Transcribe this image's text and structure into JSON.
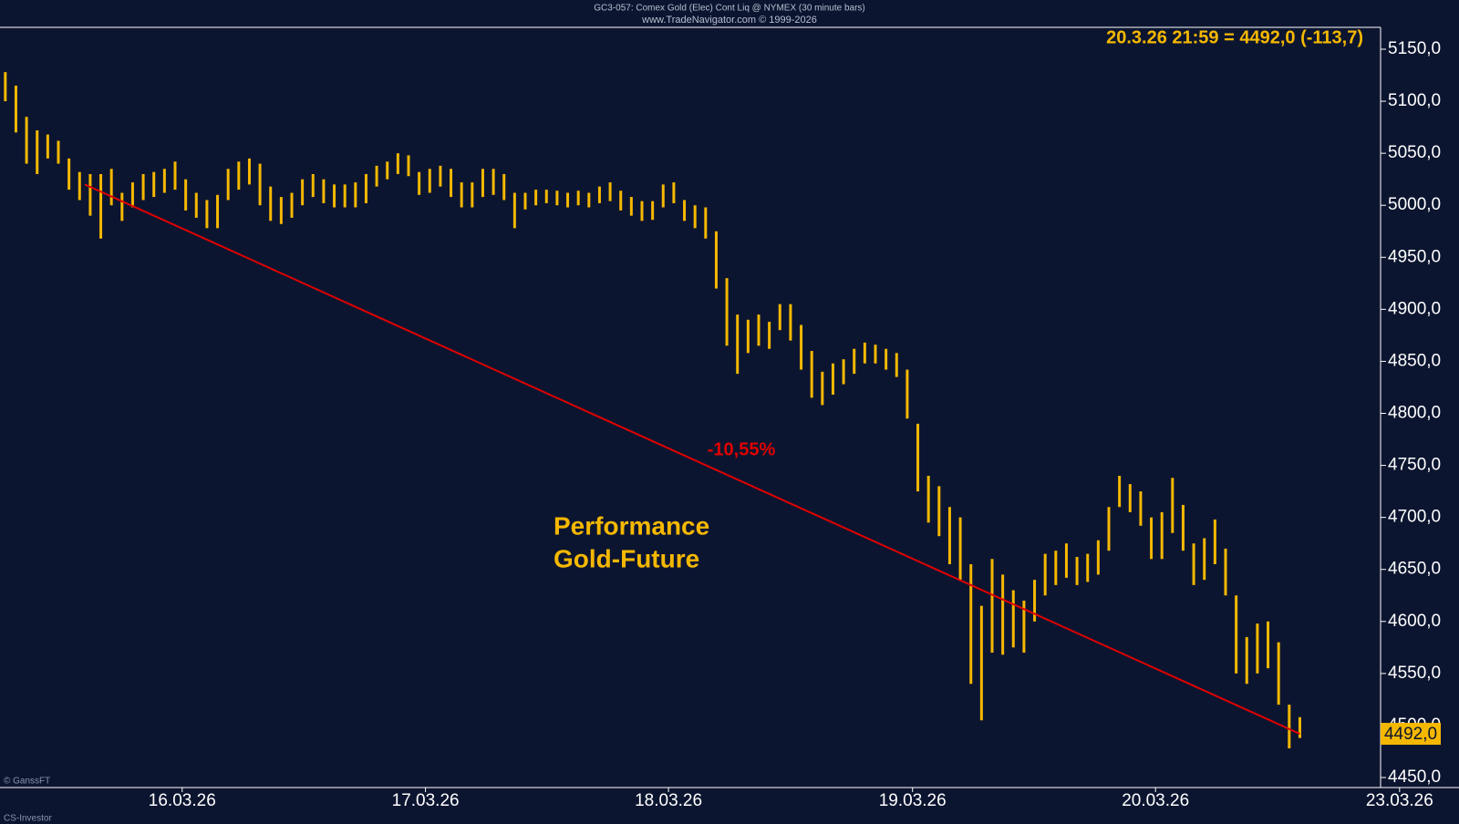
{
  "chart_data": {
    "type": "ohlc",
    "title": "GC3-057: Comex Gold (Elec) Cont Liq @ NYMEX  (30 minute bars)",
    "subtitle": "www.TradeNavigator.com © 1999-2026",
    "header": "20.3.26 21:59 = 4492,0 (-113,7)",
    "annotations": [
      "-10,55%",
      "Performance",
      "Gold-Future"
    ],
    "credits": [
      "© GanssFT",
      "CS-Investor"
    ],
    "last": {
      "value": 4492,
      "label": "4492,0"
    },
    "trendline": {
      "x": [
        7.5,
        122
      ],
      "y": [
        5020,
        4492
      ],
      "color": "#e00000"
    },
    "xlim": [
      -0.5,
      131.5
    ],
    "xticks": [
      {
        "value": 16.67,
        "label": "16.03.26"
      },
      {
        "value": 39.6,
        "label": "17.03.26"
      },
      {
        "value": 62.5,
        "label": "18.03.26"
      },
      {
        "value": 85.5,
        "label": "19.03.26"
      },
      {
        "value": 108.4,
        "label": "20.03.26"
      },
      {
        "value": 131.4,
        "label": "23.03.26"
      }
    ],
    "ylim": [
      4450,
      5150
    ],
    "yticks": [
      {
        "value": 4450,
        "label": "4450,0"
      },
      {
        "value": 4500,
        "label": "4500,0"
      },
      {
        "value": 4550,
        "label": "4550,0"
      },
      {
        "value": 4600,
        "label": "4600,0"
      },
      {
        "value": 4650,
        "label": "4650,0"
      },
      {
        "value": 4700,
        "label": "4700,0"
      },
      {
        "value": 4750,
        "label": "4750,0"
      },
      {
        "value": 4800,
        "label": "4800,0"
      },
      {
        "value": 4850,
        "label": "4850,0"
      },
      {
        "value": 4900,
        "label": "4900,0"
      },
      {
        "value": 4950,
        "label": "4950,0"
      },
      {
        "value": 5000,
        "label": "5000,0"
      },
      {
        "value": 5050,
        "label": "5050,0"
      },
      {
        "value": 5100,
        "label": "5100,0"
      },
      {
        "value": 5150,
        "label": "5150,0"
      }
    ],
    "series": [
      {
        "color": "#f5b800",
        "high": [
          5128,
          5115,
          5085,
          5072,
          5068,
          5062,
          5045,
          5032,
          5030,
          5030,
          5035,
          5012,
          5022,
          5030,
          5032,
          5035,
          5042,
          5025,
          5012,
          5005,
          5010,
          5035,
          5042,
          5045,
          5040,
          5018,
          5008,
          5012,
          5025,
          5030,
          5025,
          5020,
          5020,
          5022,
          5030,
          5038,
          5042,
          5050,
          5048,
          5032,
          5035,
          5038,
          5035,
          5022,
          5022,
          5035,
          5035,
          5030,
          5012,
          5012,
          5015,
          5015,
          5014,
          5012,
          5014,
          5012,
          5018,
          5022,
          5014,
          5008,
          5004,
          5004,
          5020,
          5022,
          5005,
          5000,
          4998,
          4975,
          4930,
          4895,
          4890,
          4895,
          4888,
          4905,
          4905,
          4885,
          4860,
          4840,
          4848,
          4852,
          4862,
          4868,
          4866,
          4862,
          4858,
          4842,
          4790,
          4740,
          4730,
          4710,
          4700,
          4655,
          4615,
          4660,
          4645,
          4630,
          4620,
          4640,
          4665,
          4668,
          4675,
          4662,
          4665,
          4678,
          4710,
          4740,
          4732,
          4725,
          4700,
          4705,
          4738,
          4712,
          4675,
          4680,
          4698,
          4670,
          4625,
          4585,
          4598,
          4600,
          4580,
          4520,
          4508
        ],
        "low": [
          5100,
          5070,
          5040,
          5030,
          5045,
          5040,
          5015,
          5005,
          4990,
          4968,
          5000,
          4985,
          4998,
          5005,
          5008,
          5012,
          5015,
          4995,
          4988,
          4978,
          4978,
          5005,
          5015,
          5020,
          5000,
          4985,
          4982,
          4988,
          5000,
          5008,
          5002,
          4998,
          4998,
          4998,
          5002,
          5018,
          5025,
          5030,
          5028,
          5010,
          5012,
          5018,
          5008,
          4998,
          4998,
          5008,
          5010,
          5005,
          4978,
          4996,
          5000,
          5002,
          5000,
          4998,
          5000,
          4998,
          5002,
          5004,
          4995,
          4990,
          4985,
          4986,
          4998,
          5002,
          4985,
          4978,
          4968,
          4920,
          4865,
          4838,
          4858,
          4865,
          4862,
          4880,
          4870,
          4842,
          4815,
          4808,
          4818,
          4828,
          4838,
          4848,
          4848,
          4842,
          4835,
          4795,
          4725,
          4695,
          4682,
          4655,
          4640,
          4540,
          4505,
          4570,
          4568,
          4575,
          4570,
          4600,
          4625,
          4635,
          4642,
          4635,
          4638,
          4645,
          4668,
          4710,
          4705,
          4692,
          4660,
          4660,
          4685,
          4668,
          4635,
          4640,
          4655,
          4625,
          4550,
          4540,
          4550,
          4555,
          4520,
          4478,
          4488
        ]
      }
    ]
  }
}
